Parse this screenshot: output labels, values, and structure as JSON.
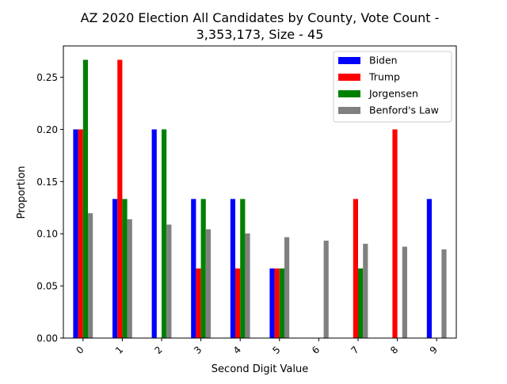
{
  "chart_data": {
    "type": "bar",
    "title_lines": [
      "AZ 2020 Election All Candidates by County, Vote Count -",
      "3,353,173, Size - 45"
    ],
    "xlabel": "Second Digit Value",
    "ylabel": "Proportion",
    "categories": [
      "0",
      "1",
      "2",
      "3",
      "4",
      "5",
      "6",
      "7",
      "8",
      "9"
    ],
    "ylim": [
      0,
      0.28
    ],
    "yticks": [
      0.0,
      0.05,
      0.1,
      0.15,
      0.2,
      0.25
    ],
    "ytick_labels": [
      "0.00",
      "0.05",
      "0.10",
      "0.15",
      "0.20",
      "0.25"
    ],
    "grid": false,
    "legend_position": "top-right",
    "series": [
      {
        "name": "Biden",
        "color": "#0000ff",
        "values": [
          0.2,
          0.1333,
          0.2,
          0.1333,
          0.1333,
          0.0667,
          0.0,
          0.0,
          0.0,
          0.1333
        ]
      },
      {
        "name": "Trump",
        "color": "#ff0000",
        "values": [
          0.2,
          0.2667,
          0.0,
          0.0667,
          0.0667,
          0.0667,
          0.0,
          0.1333,
          0.2,
          0.0
        ]
      },
      {
        "name": "Jorgensen",
        "color": "#008000",
        "values": [
          0.2667,
          0.1333,
          0.2,
          0.1333,
          0.1333,
          0.0667,
          0.0,
          0.0667,
          0.0,
          0.0
        ]
      },
      {
        "name": "Benford's Law",
        "color": "#808080",
        "values": [
          0.1197,
          0.1139,
          0.1088,
          0.1043,
          0.1003,
          0.0967,
          0.0934,
          0.0904,
          0.0876,
          0.085
        ]
      }
    ]
  }
}
